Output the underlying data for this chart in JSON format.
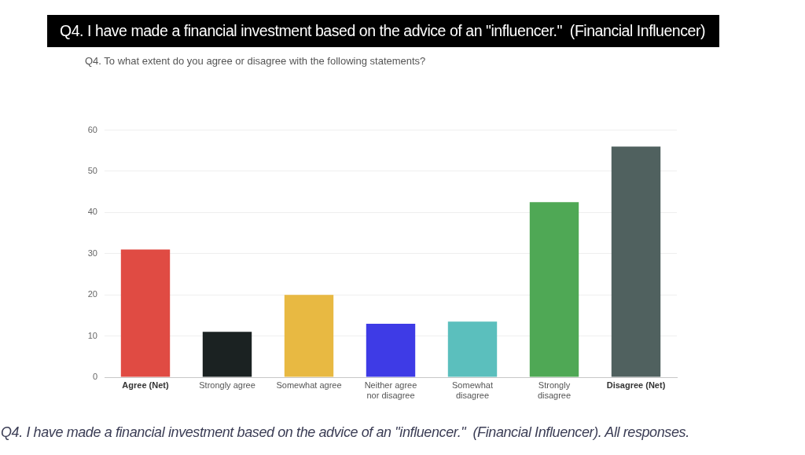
{
  "chart_data": {
    "type": "bar",
    "title": "Q4. I have made a financial investment based on the advice of an \"influencer.\"  (Financial Influencer)",
    "subtitle": "Q4. To what extent do you agree or disagree with the following statements?",
    "annotations": [
      "Q4. I have made a financial investment based on the advice of an \"influencer.\"  (Financial Influencer). All responses."
    ],
    "categories": [
      "Agree (Net)",
      "Strongly agree",
      "Somewhat agree",
      "Neither agree nor disagree",
      "Somewhat disagree",
      "Strongly disagree",
      "Disagree (Net)"
    ],
    "values": [
      31,
      11,
      20,
      13,
      13.5,
      42.5,
      56
    ],
    "colors": [
      "#e04b43",
      "#1b2222",
      "#e8b942",
      "#3e3be6",
      "#5bbfbd",
      "#4fa855",
      "#50615f"
    ],
    "ylim": [
      0,
      60
    ],
    "yticks": [
      0,
      10,
      20,
      30,
      40,
      50,
      60
    ],
    "grid": "y"
  }
}
